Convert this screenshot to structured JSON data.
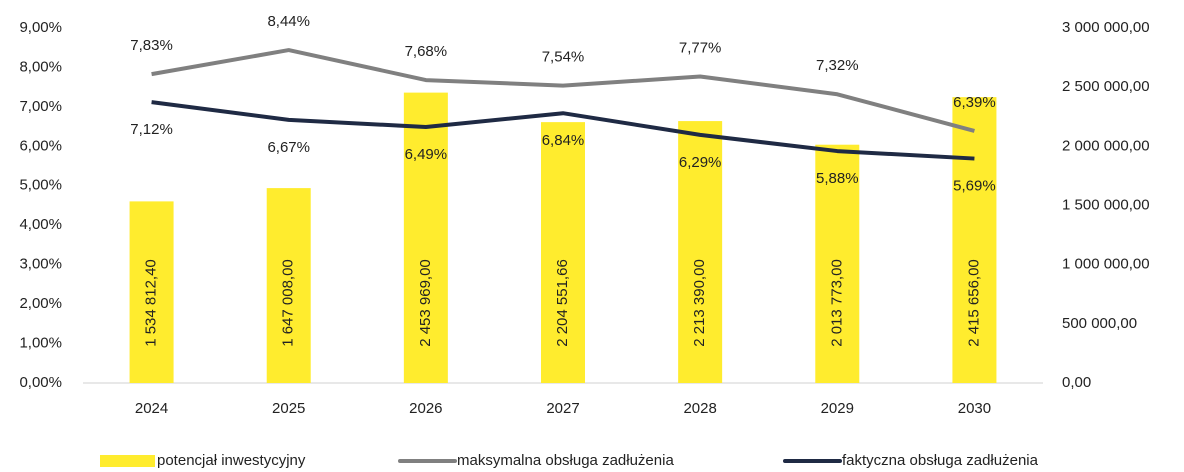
{
  "chart_data": {
    "type": "combo",
    "categories": [
      "2024",
      "2025",
      "2026",
      "2027",
      "2028",
      "2029",
      "2030"
    ],
    "series": [
      {
        "name": "potencjał inwestycyjny",
        "type": "bar",
        "axis": "y2",
        "color": "#FFEC2E",
        "values": [
          1534812.4,
          1647008.0,
          2453969.0,
          2204551.66,
          2213390.0,
          2013773.0,
          2415656.0
        ],
        "value_labels": [
          "1 534 812,40",
          "1 647 008,00",
          "2 453 969,00",
          "2 204 551,66",
          "2 213 390,00",
          "2 013 773,00",
          "2 415 656,00"
        ]
      },
      {
        "name": "maksymalna obsługa zadłużenia",
        "type": "line",
        "axis": "y",
        "color": "#808080",
        "label_side": "above",
        "values": [
          7.83,
          8.44,
          7.68,
          7.54,
          7.77,
          7.32,
          6.39
        ],
        "value_labels": [
          "7,83%",
          "8,44%",
          "7,68%",
          "7,54%",
          "7,77%",
          "7,32%",
          "6,39%"
        ]
      },
      {
        "name": "faktyczna obsługa zadłużenia",
        "type": "line",
        "axis": "y",
        "color": "#1F2A44",
        "label_side": "below",
        "values": [
          7.12,
          6.67,
          6.49,
          6.84,
          6.29,
          5.88,
          5.69
        ],
        "value_labels": [
          "7,12%",
          "6,67%",
          "6,49%",
          "6,84%",
          "6,29%",
          "5,88%",
          "5,69%"
        ]
      }
    ],
    "ylim": [
      0,
      9
    ],
    "yticks": [
      {
        "value": 0,
        "label": "0,00%"
      },
      {
        "value": 1,
        "label": "1,00%"
      },
      {
        "value": 2,
        "label": "2,00%"
      },
      {
        "value": 3,
        "label": "3,00%"
      },
      {
        "value": 4,
        "label": "4,00%"
      },
      {
        "value": 5,
        "label": "5,00%"
      },
      {
        "value": 6,
        "label": "6,00%"
      },
      {
        "value": 7,
        "label": "7,00%"
      },
      {
        "value": 8,
        "label": "8,00%"
      },
      {
        "value": 9,
        "label": "9,00%"
      }
    ],
    "y2lim": [
      0,
      3000000
    ],
    "y2ticks": [
      {
        "value": 0,
        "label": "0,00"
      },
      {
        "value": 500000,
        "label": "500 000,00"
      },
      {
        "value": 1000000,
        "label": "1 000 000,00"
      },
      {
        "value": 1500000,
        "label": "1 500 000,00"
      },
      {
        "value": 2000000,
        "label": "2 000 000,00"
      },
      {
        "value": 2500000,
        "label": "2 500 000,00"
      },
      {
        "value": 3000000,
        "label": "3 000 000,00"
      }
    ],
    "grid": false,
    "legend": "bottom"
  }
}
